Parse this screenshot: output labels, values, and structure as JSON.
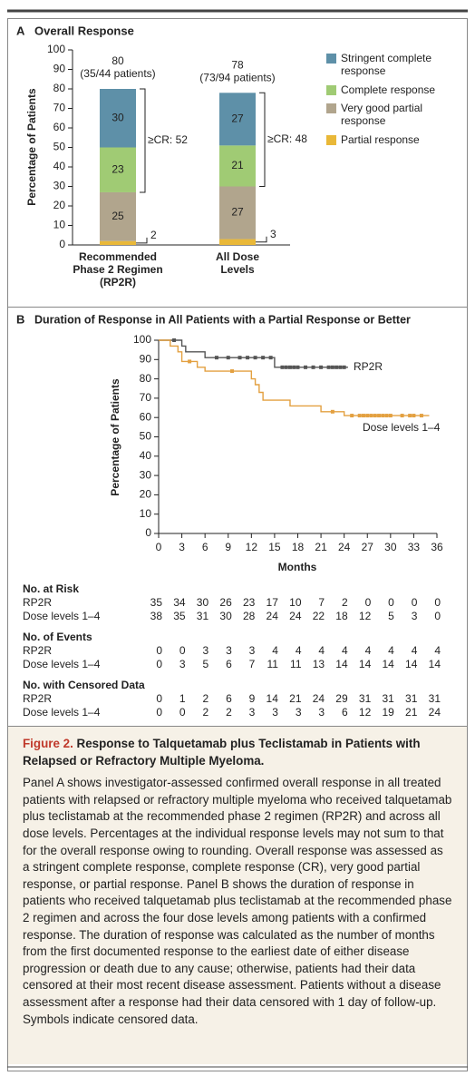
{
  "chart_data": [
    {
      "type": "bar",
      "panel": "A",
      "title": "Overall Response",
      "ylabel": "Percentage of Patients",
      "categories": [
        "Recommended\nPhase 2 Regimen\n(RP2R)",
        "All Dose\nLevels"
      ],
      "series": [
        {
          "name": "Partial response",
          "color": "#e9b838",
          "values": [
            2,
            3
          ]
        },
        {
          "name": "Very good partial response",
          "color": "#b1a58d",
          "values": [
            25,
            27
          ]
        },
        {
          "name": "Complete response",
          "color": "#a0cb74",
          "values": [
            23,
            21
          ]
        },
        {
          "name": "Stringent complete response",
          "color": "#5e90a8",
          "values": [
            30,
            27
          ]
        }
      ],
      "totals": [
        80,
        78
      ],
      "total_labels": [
        "(35/44 patients)",
        "(73/94 patients)"
      ],
      "annotations": [
        "≥CR: 52",
        "≥CR: 48"
      ],
      "ylim": [
        0,
        100
      ],
      "yticks": [
        0,
        10,
        20,
        30,
        40,
        50,
        60,
        70,
        80,
        90,
        100
      ]
    },
    {
      "type": "line",
      "step": true,
      "panel": "B",
      "title": "Duration of Response in All Patients with a Partial Response or Better",
      "xlabel": "Months",
      "ylabel": "Percentage of Patients",
      "series": [
        {
          "name": "RP2R",
          "color": "#555555",
          "x": [
            0,
            3,
            3,
            3.5,
            3.5,
            6,
            6,
            15,
            15,
            24.5
          ],
          "values": [
            100,
            100,
            97,
            97,
            94,
            94,
            91,
            91,
            86,
            86
          ],
          "censored_x": [
            2,
            7.5,
            9,
            10.5,
            11.5,
            12.5,
            13.5,
            14.5,
            16,
            16.5,
            17,
            17.5,
            18,
            19,
            20,
            21,
            22,
            22.5,
            23,
            23.5,
            24
          ],
          "censored_values": [
            100,
            91,
            91,
            91,
            91,
            91,
            91,
            91,
            86,
            86,
            86,
            86,
            86,
            86,
            86,
            86,
            86,
            86,
            86,
            86,
            86
          ]
        },
        {
          "name": "Dose levels 1–4",
          "color": "#e3a040",
          "x": [
            0,
            1.5,
            1.5,
            2.5,
            2.5,
            3,
            3,
            5,
            5,
            6,
            6,
            12,
            12,
            12.5,
            12.5,
            13,
            13,
            13.5,
            13.5,
            17,
            17,
            21,
            21,
            24,
            24,
            35
          ],
          "values": [
            100,
            100,
            97,
            97,
            94,
            94,
            89,
            89,
            86,
            86,
            84,
            84,
            80,
            80,
            77,
            77,
            73,
            73,
            69,
            69,
            66,
            66,
            63,
            63,
            61,
            61
          ],
          "censored_x": [
            4,
            9.5,
            22.5,
            25,
            26,
            26.5,
            27,
            27.5,
            28,
            28.5,
            29,
            29.5,
            30,
            31.5,
            32.5,
            33,
            34
          ],
          "censored_values": [
            89,
            84,
            63,
            61,
            61,
            61,
            61,
            61,
            61,
            61,
            61,
            61,
            61,
            61,
            61,
            61,
            61
          ]
        }
      ],
      "xlim": [
        0,
        36
      ],
      "xticks": [
        0,
        3,
        6,
        9,
        12,
        15,
        18,
        21,
        24,
        27,
        30,
        33,
        36
      ],
      "ylim": [
        0,
        100
      ],
      "yticks": [
        0,
        10,
        20,
        30,
        40,
        50,
        60,
        70,
        80,
        90,
        100
      ]
    }
  ],
  "risk_table": {
    "sections": [
      {
        "title": "No. at Risk",
        "rows": [
          {
            "label": "RP2R",
            "values": [
              35,
              34,
              30,
              26,
              23,
              17,
              10,
              7,
              2,
              0,
              0,
              0,
              0
            ]
          },
          {
            "label": "Dose levels 1–4",
            "values": [
              38,
              35,
              31,
              30,
              28,
              24,
              24,
              22,
              18,
              12,
              5,
              3,
              0
            ]
          }
        ]
      },
      {
        "title": "No. of Events",
        "rows": [
          {
            "label": "RP2R",
            "values": [
              0,
              0,
              3,
              3,
              3,
              4,
              4,
              4,
              4,
              4,
              4,
              4,
              4
            ]
          },
          {
            "label": "Dose levels 1–4",
            "values": [
              0,
              3,
              5,
              6,
              7,
              11,
              11,
              13,
              14,
              14,
              14,
              14,
              14
            ]
          }
        ]
      },
      {
        "title": "No. with Censored Data",
        "rows": [
          {
            "label": "RP2R",
            "values": [
              0,
              1,
              2,
              6,
              9,
              14,
              21,
              24,
              29,
              31,
              31,
              31,
              31
            ]
          },
          {
            "label": "Dose levels 1–4",
            "values": [
              0,
              0,
              2,
              2,
              3,
              3,
              3,
              3,
              6,
              12,
              19,
              21,
              24
            ]
          }
        ]
      }
    ]
  },
  "caption": {
    "label": "Figure 2.",
    "title": "Response to Talquetamab plus Teclistamab in Patients with Relapsed or Refractory Multiple Myeloma.",
    "body": "Panel A shows investigator-assessed confirmed overall response in all treated patients with relapsed or refractory multiple myeloma who received talquetamab plus teclistamab at the recommended phase 2 regimen (RP2R) and across all dose levels. Percentages at the individual response levels may not sum to that for the overall response owing to rounding. Overall response was assessed as a stringent complete response, complete response (CR), very good partial response, or partial response. Panel B shows the duration of response in patients who received talquetamab plus teclistamab at the recommended phase 2 regimen and across the four dose levels among patients with a confirmed response. The duration of response was calculated as the number of months from the first documented response to the earliest date of either disease progression or death due to any cause; otherwise, patients had their data censored at their most recent disease assessment. Patients without a disease assessment after a response had their data censored with 1 day of follow-up. Symbols indicate censored data."
  }
}
